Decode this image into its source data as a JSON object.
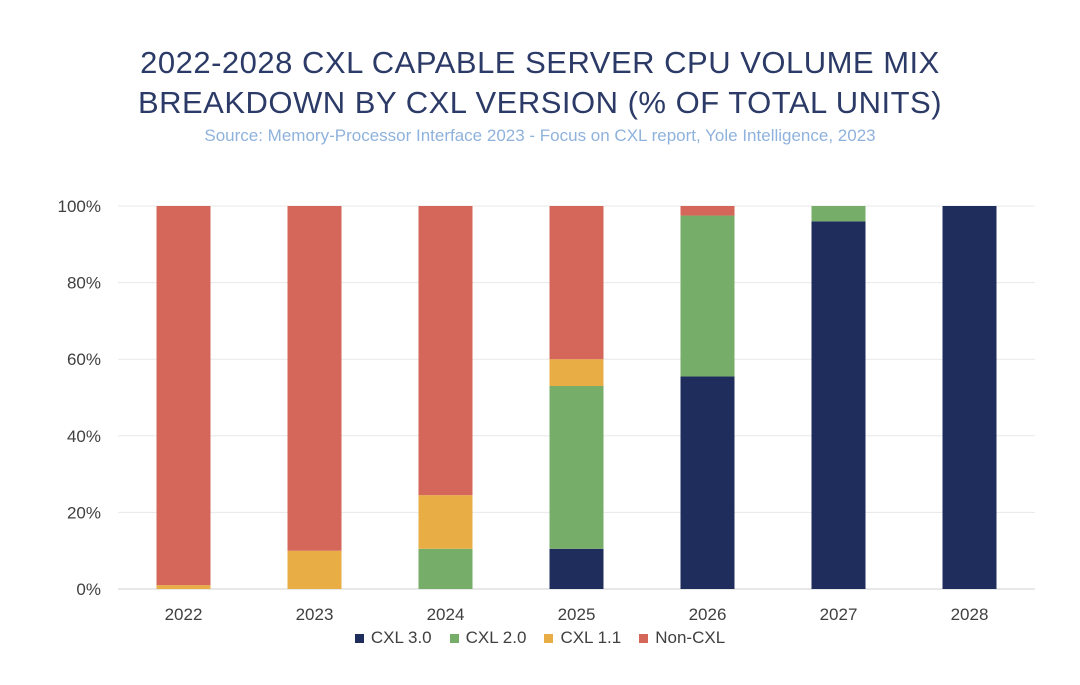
{
  "chart_data": {
    "type": "bar",
    "stacked": true,
    "title_line1": "2022-2028 CXL CAPABLE SERVER CPU VOLUME MIX",
    "title_line2": "BREAKDOWN BY CXL VERSION (% OF TOTAL UNITS)",
    "subtitle": "Source: Memory-Processor Interface 2023 - Focus on CXL  report, Yole Intelligence, 2023",
    "categories": [
      "2022",
      "2023",
      "2024",
      "2025",
      "2026",
      "2027",
      "2028"
    ],
    "series": [
      {
        "name": "CXL 3.0",
        "color": "#1f2d5c",
        "values": [
          0,
          0,
          0,
          10.5,
          55.5,
          96,
          100
        ]
      },
      {
        "name": "CXL 2.0",
        "color": "#76ad68",
        "values": [
          0,
          0,
          10.5,
          42.5,
          42,
          4,
          0
        ]
      },
      {
        "name": "CXL 1.1",
        "color": "#e8ae45",
        "values": [
          1,
          10,
          14,
          7,
          0,
          0,
          0
        ]
      },
      {
        "name": "Non-CXL",
        "color": "#d4665a",
        "values": [
          99,
          90,
          75.5,
          40,
          2.5,
          0,
          0
        ]
      }
    ],
    "ylim": [
      0,
      100
    ],
    "yticks": [
      "0%",
      "20%",
      "40%",
      "60%",
      "80%",
      "100%"
    ],
    "ytick_values": [
      0,
      20,
      40,
      60,
      80,
      100
    ],
    "grid": true,
    "legend_position": "bottom",
    "xlabel": "",
    "ylabel": ""
  }
}
